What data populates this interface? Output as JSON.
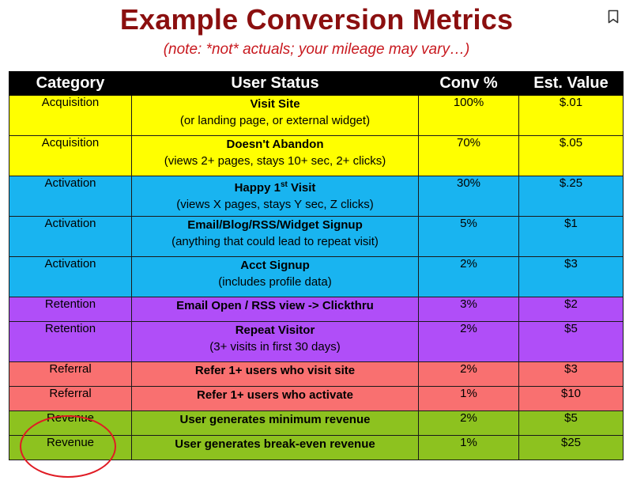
{
  "title": "Example Conversion Metrics",
  "subtitle": "(note: *not* actuals; your mileage may vary…)",
  "headers": {
    "category": "Category",
    "status": "User Status",
    "conv": "Conv %",
    "value": "Est. Value"
  },
  "rows": [
    {
      "category": "Acquisition",
      "status": "Visit Site",
      "sub": "(or landing page, or external widget)",
      "conv": "100%",
      "value": "$.01"
    },
    {
      "category": "Acquisition",
      "status": "Doesn't Abandon",
      "sub": "(views 2+ pages, stays 10+ sec, 2+ clicks)",
      "conv": "70%",
      "value": "$.05"
    },
    {
      "category": "Activation",
      "status_pre": "Happy 1",
      "status_sup": "st",
      "status_post": " Visit",
      "sub": "(views X pages, stays Y sec, Z clicks)",
      "conv": "30%",
      "value": "$.25"
    },
    {
      "category": "Activation",
      "status": "Email/Blog/RSS/Widget Signup",
      "sub": "(anything that could lead to repeat visit)",
      "conv": "5%",
      "value": "$1"
    },
    {
      "category": "Activation",
      "status": "Acct Signup",
      "sub": "(includes profile data)",
      "conv": "2%",
      "value": "$3"
    },
    {
      "category": "Retention",
      "status": "Email Open / RSS view -> Clickthru",
      "conv": "3%",
      "value": "$2"
    },
    {
      "category": "Retention",
      "status": "Repeat Visitor",
      "sub": "(3+ visits in first 30 days)",
      "conv": "2%",
      "value": "$5"
    },
    {
      "category": "Referral",
      "status": "Refer 1+ users who visit site",
      "conv": "2%",
      "value": "$3"
    },
    {
      "category": "Referral",
      "status": "Refer 1+ users who activate",
      "conv": "1%",
      "value": "$10"
    },
    {
      "category": "Revenue",
      "status": "User generates minimum revenue",
      "conv": "2%",
      "value": "$5"
    },
    {
      "category": "Revenue",
      "status": "User generates break-even revenue",
      "conv": "1%",
      "value": "$25"
    }
  ],
  "colors": {
    "title": "#8b0f0f",
    "subtitle": "#c8191f",
    "acquisition": "#ffff00",
    "activation": "#19b4f0",
    "retention": "#b04ef8",
    "referral": "#f97070",
    "revenue": "#8dc21f",
    "highlight_circle": "#e01b24"
  },
  "icons": {
    "bookmark": "bookmark-icon"
  }
}
